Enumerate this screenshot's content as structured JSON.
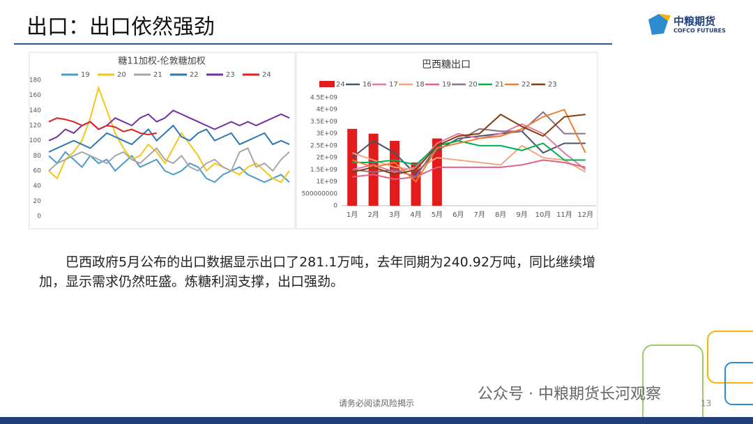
{
  "slide": {
    "title": "出口：出口依然强劲",
    "logo_cn": "中粮期货",
    "logo_en": "COFCO FUTURES",
    "body": "巴西政府5月公布的出口数据显示出口了281.1万吨，去年同期为240.92万吨，同比继续增加，显示需求仍然旺盛。炼糖利润支撑，出口强劲。",
    "footer": "请务必阅读风险揭示",
    "page": "13",
    "watermark": "公众号 · 中粮期货长河观察"
  },
  "chart_data": [
    {
      "type": "line",
      "title": "糖11加权-伦敦糖加权",
      "ylim": [
        0,
        180
      ],
      "yticks": [
        0,
        20,
        40,
        60,
        80,
        100,
        120,
        140,
        160,
        180
      ],
      "grid": false,
      "series": [
        {
          "name": "19",
          "color": "#4a9bc7",
          "values": [
            80,
            70,
            85,
            75,
            65,
            80,
            70,
            75,
            60,
            70,
            80,
            65,
            70,
            75,
            60,
            55,
            60,
            70,
            65,
            50,
            45,
            55,
            60,
            65,
            55,
            50,
            45,
            50,
            55,
            45
          ]
        },
        {
          "name": "20",
          "color": "#f5c518",
          "values": [
            60,
            50,
            75,
            85,
            100,
            130,
            170,
            140,
            110,
            90,
            75,
            80,
            95,
            85,
            70,
            90,
            110,
            95,
            80,
            60,
            70,
            65,
            60,
            55,
            65,
            70,
            60,
            50,
            45,
            60
          ]
        },
        {
          "name": "21",
          "color": "#a6a6a6",
          "values": [
            60,
            70,
            75,
            80,
            85,
            80,
            75,
            70,
            80,
            85,
            75,
            70,
            80,
            90,
            75,
            70,
            80,
            65,
            60,
            70,
            75,
            65,
            60,
            85,
            90,
            65,
            70,
            60,
            75,
            85
          ]
        },
        {
          "name": "22",
          "color": "#2e75b6",
          "values": [
            85,
            90,
            95,
            100,
            95,
            90,
            100,
            110,
            105,
            100,
            95,
            105,
            115,
            100,
            110,
            120,
            105,
            100,
            110,
            115,
            100,
            105,
            110,
            95,
            100,
            105,
            110,
            95,
            100,
            95
          ]
        },
        {
          "name": "23",
          "color": "#7030a0",
          "values": [
            100,
            105,
            115,
            110,
            120,
            125,
            115,
            120,
            130,
            125,
            120,
            130,
            135,
            125,
            130,
            140,
            135,
            130,
            125,
            120,
            115,
            120,
            125,
            120,
            125,
            120,
            125,
            130,
            135,
            130
          ]
        },
        {
          "name": "24",
          "color": "#e02020",
          "values": [
            125,
            130,
            128,
            125,
            120,
            125,
            115,
            120,
            118,
            112,
            115,
            110,
            108,
            110,
            null,
            null,
            null,
            null,
            null,
            null,
            null,
            null,
            null,
            null,
            null,
            null,
            null,
            null,
            null,
            null
          ]
        }
      ]
    },
    {
      "type": "combo",
      "title": "巴西糖出口",
      "categories": [
        "1月",
        "2月",
        "3月",
        "4月",
        "5月",
        "6月",
        "7月",
        "8月",
        "9月",
        "10月",
        "11月",
        "12月"
      ],
      "ylim": [
        0,
        4500000000
      ],
      "yticks": [
        0,
        500000000,
        {
          "value": 1000000000,
          "label": "1E+09"
        },
        {
          "value": 1500000000,
          "label": "1.5E+09"
        },
        {
          "value": 2000000000,
          "label": "2E+09"
        },
        {
          "value": 2500000000,
          "label": "2.5E+09"
        },
        {
          "value": 3000000000,
          "label": "3E+09"
        },
        {
          "value": 3500000000,
          "label": "3.5E+09"
        },
        {
          "value": 4000000000,
          "label": "4E+09"
        },
        {
          "value": 4500000000,
          "label": "4.5E+09"
        }
      ],
      "grid": false,
      "series": [
        {
          "name": "24",
          "mark": "bar",
          "color": "#e31b1b",
          "values": [
            3200000000,
            3000000000,
            2700000000,
            1800000000,
            2800000000,
            null,
            null,
            null,
            null,
            null,
            null,
            null
          ]
        },
        {
          "name": "16",
          "color": "#44546a",
          "values": [
            2000000000,
            2700000000,
            2200000000,
            1300000000,
            2300000000,
            2800000000,
            2900000000,
            3000000000,
            3100000000,
            2200000000,
            2600000000,
            2600000000
          ]
        },
        {
          "name": "17",
          "color": "#e377a0",
          "values": [
            1500000000,
            1700000000,
            1400000000,
            1600000000,
            2600000000,
            3000000000,
            2800000000,
            3000000000,
            3400000000,
            3000000000,
            2200000000,
            1500000000
          ]
        },
        {
          "name": "18",
          "color": "#f4a582",
          "values": [
            2200000000,
            1900000000,
            1600000000,
            1500000000,
            2000000000,
            1900000000,
            1800000000,
            1700000000,
            2500000000,
            2000000000,
            1900000000,
            1400000000
          ]
        },
        {
          "name": "19",
          "color": "#e06080",
          "values": [
            1200000000,
            1300000000,
            1100000000,
            1200000000,
            1600000000,
            1600000000,
            1600000000,
            1600000000,
            1700000000,
            1900000000,
            1800000000,
            1600000000
          ]
        },
        {
          "name": "20",
          "color": "#8c6d8c",
          "values": [
            1500000000,
            1400000000,
            1500000000,
            1200000000,
            2500000000,
            2700000000,
            3200000000,
            3100000000,
            3100000000,
            3900000000,
            3000000000,
            3000000000
          ]
        },
        {
          "name": "21",
          "color": "#00b050",
          "values": [
            1800000000,
            1800000000,
            1900000000,
            1700000000,
            2500000000,
            2700000000,
            2500000000,
            2500000000,
            2300000000,
            2600000000,
            1900000000,
            1900000000
          ]
        },
        {
          "name": "22",
          "color": "#ed7d31",
          "values": [
            1900000000,
            1600000000,
            1800000000,
            1000000000,
            2400000000,
            2600000000,
            2800000000,
            2900000000,
            3200000000,
            3700000000,
            4000000000,
            2200000000
          ]
        },
        {
          "name": "23",
          "color": "#843c0c",
          "values": [
            1400000000,
            1600000000,
            1300000000,
            1500000000,
            2500000000,
            2900000000,
            3000000000,
            3800000000,
            3300000000,
            2900000000,
            3700000000,
            3800000000
          ]
        }
      ]
    }
  ]
}
